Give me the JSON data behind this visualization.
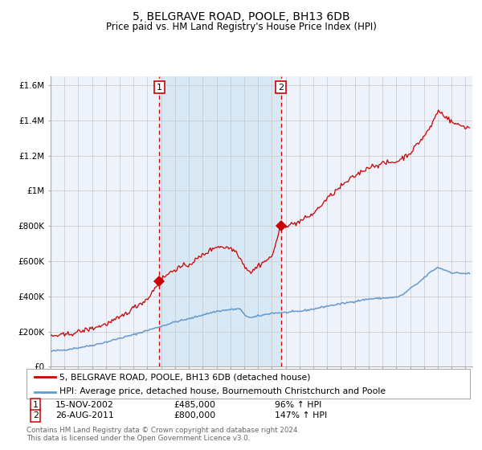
{
  "title": "5, BELGRAVE ROAD, POOLE, BH13 6DB",
  "subtitle": "Price paid vs. HM Land Registry's House Price Index (HPI)",
  "footer": "Contains HM Land Registry data © Crown copyright and database right 2024.\nThis data is licensed under the Open Government Licence v3.0.",
  "legend_line1": "5, BELGRAVE ROAD, POOLE, BH13 6DB (detached house)",
  "legend_line2": "HPI: Average price, detached house, Bournemouth Christchurch and Poole",
  "sale1_label": "1",
  "sale1_date": "15-NOV-2002",
  "sale1_price": "£485,000",
  "sale1_hpi": "96% ↑ HPI",
  "sale1_year": 2002.87,
  "sale1_value": 485000,
  "sale2_label": "2",
  "sale2_date": "26-AUG-2011",
  "sale2_price": "£800,000",
  "sale2_hpi": "147% ↑ HPI",
  "sale2_year": 2011.65,
  "sale2_value": 800000,
  "hpi_color": "#6699cc",
  "property_color": "#cc0000",
  "background_color": "#ffffff",
  "plot_bg_color": "#eef2fa",
  "shade_color": "#d8e8f4",
  "grid_color": "#c8c8c8",
  "dashed_line_color": "#cc0000",
  "ylim": [
    0,
    1650000
  ],
  "xlim_start": 1995.0,
  "xlim_end": 2025.5
}
